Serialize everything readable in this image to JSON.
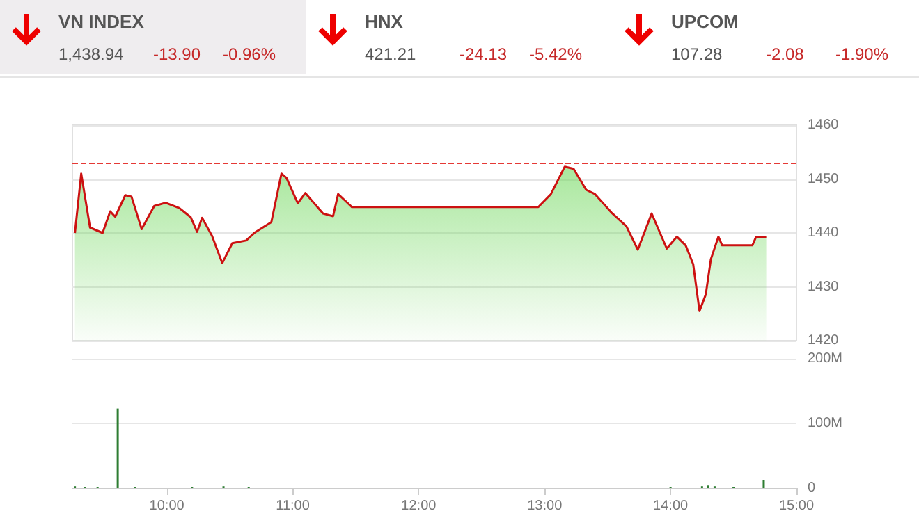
{
  "chart_data": [
    {
      "type": "other",
      "annotations": [
        "VN INDEX",
        "1,438.94",
        "-13.90",
        "-0.96%",
        "HNX",
        "421.21",
        "-24.13",
        "-5.42%",
        "UPCOM",
        "107.28",
        "-2.08",
        "-1.90%"
      ]
    },
    {
      "type": "area",
      "xlim": [
        9.25,
        15
      ],
      "ylim": [
        1420,
        1460
      ],
      "yticks": [
        1420,
        1430,
        1440,
        1450,
        1460
      ],
      "tick_labels": "y",
      "grid": "y",
      "ref_lines": [
        {
          "axis": "y",
          "value": 1453,
          "color": "#e53935",
          "line_style": "dashed"
        }
      ],
      "series": [
        {
          "color": "#cc1111",
          "x": [
            9.27,
            9.32,
            9.39,
            9.49,
            9.55,
            9.59,
            9.67,
            9.72,
            9.8,
            9.9,
            9.99,
            10.1,
            10.19,
            10.24,
            10.28,
            10.36,
            10.44,
            10.52,
            10.63,
            10.7,
            10.83,
            10.91,
            10.95,
            11.04,
            11.1,
            11.24,
            11.32,
            11.36,
            11.42,
            11.47,
            12.95,
            13.05,
            13.16,
            13.23,
            13.33,
            13.4,
            13.53,
            13.65,
            13.74,
            13.85,
            13.97,
            14.05,
            14.12,
            14.18,
            14.23,
            14.28,
            14.32,
            14.38,
            14.41,
            14.65,
            14.68,
            14.76
          ],
          "values": [
            1440,
            1451,
            1441,
            1440,
            1444,
            1443,
            1447,
            1446.7,
            1440.7,
            1445,
            1445.6,
            1444.6,
            1442.9,
            1440.2,
            1442.8,
            1439.4,
            1434.4,
            1438.1,
            1438.6,
            1440.1,
            1442,
            1451,
            1450.2,
            1445.5,
            1447.4,
            1443.6,
            1443.1,
            1447.2,
            1445.9,
            1444.8,
            1444.8,
            1447.2,
            1452.3,
            1451.9,
            1448,
            1447.2,
            1443.8,
            1441.2,
            1436.9,
            1443.6,
            1437.1,
            1439.3,
            1437.7,
            1434.2,
            1425.5,
            1428.6,
            1435.1,
            1439.3,
            1437.7,
            1437.7,
            1439.3,
            1439.3
          ]
        }
      ]
    },
    {
      "type": "bar",
      "xlim": [
        9.25,
        15
      ],
      "xticks": [
        {
          "value": 10,
          "label": "10:00"
        },
        {
          "value": 11,
          "label": "11:00"
        },
        {
          "value": 12,
          "label": "12:00"
        },
        {
          "value": 13,
          "label": "13:00"
        },
        {
          "value": 14,
          "label": "14:00"
        },
        {
          "value": 15,
          "label": "15:00"
        }
      ],
      "ylim": [
        0,
        200
      ],
      "yticks": [
        {
          "value": 0,
          "label": "0"
        },
        {
          "value": 100,
          "label": "100M"
        },
        {
          "value": 200,
          "label": "200M"
        }
      ],
      "grid": "y",
      "series": [
        {
          "color": "#2e7d32",
          "x": [
            9.27,
            9.35,
            9.45,
            9.61,
            9.75,
            9.9,
            10.2,
            10.45,
            10.65,
            10.95,
            13.2,
            13.7,
            14.0,
            14.25,
            14.3,
            14.35,
            14.5,
            14.74
          ],
          "values": [
            3,
            2,
            2,
            123,
            2,
            null,
            2,
            3,
            2,
            null,
            null,
            null,
            2,
            3,
            4,
            3,
            2,
            12
          ]
        }
      ]
    }
  ]
}
